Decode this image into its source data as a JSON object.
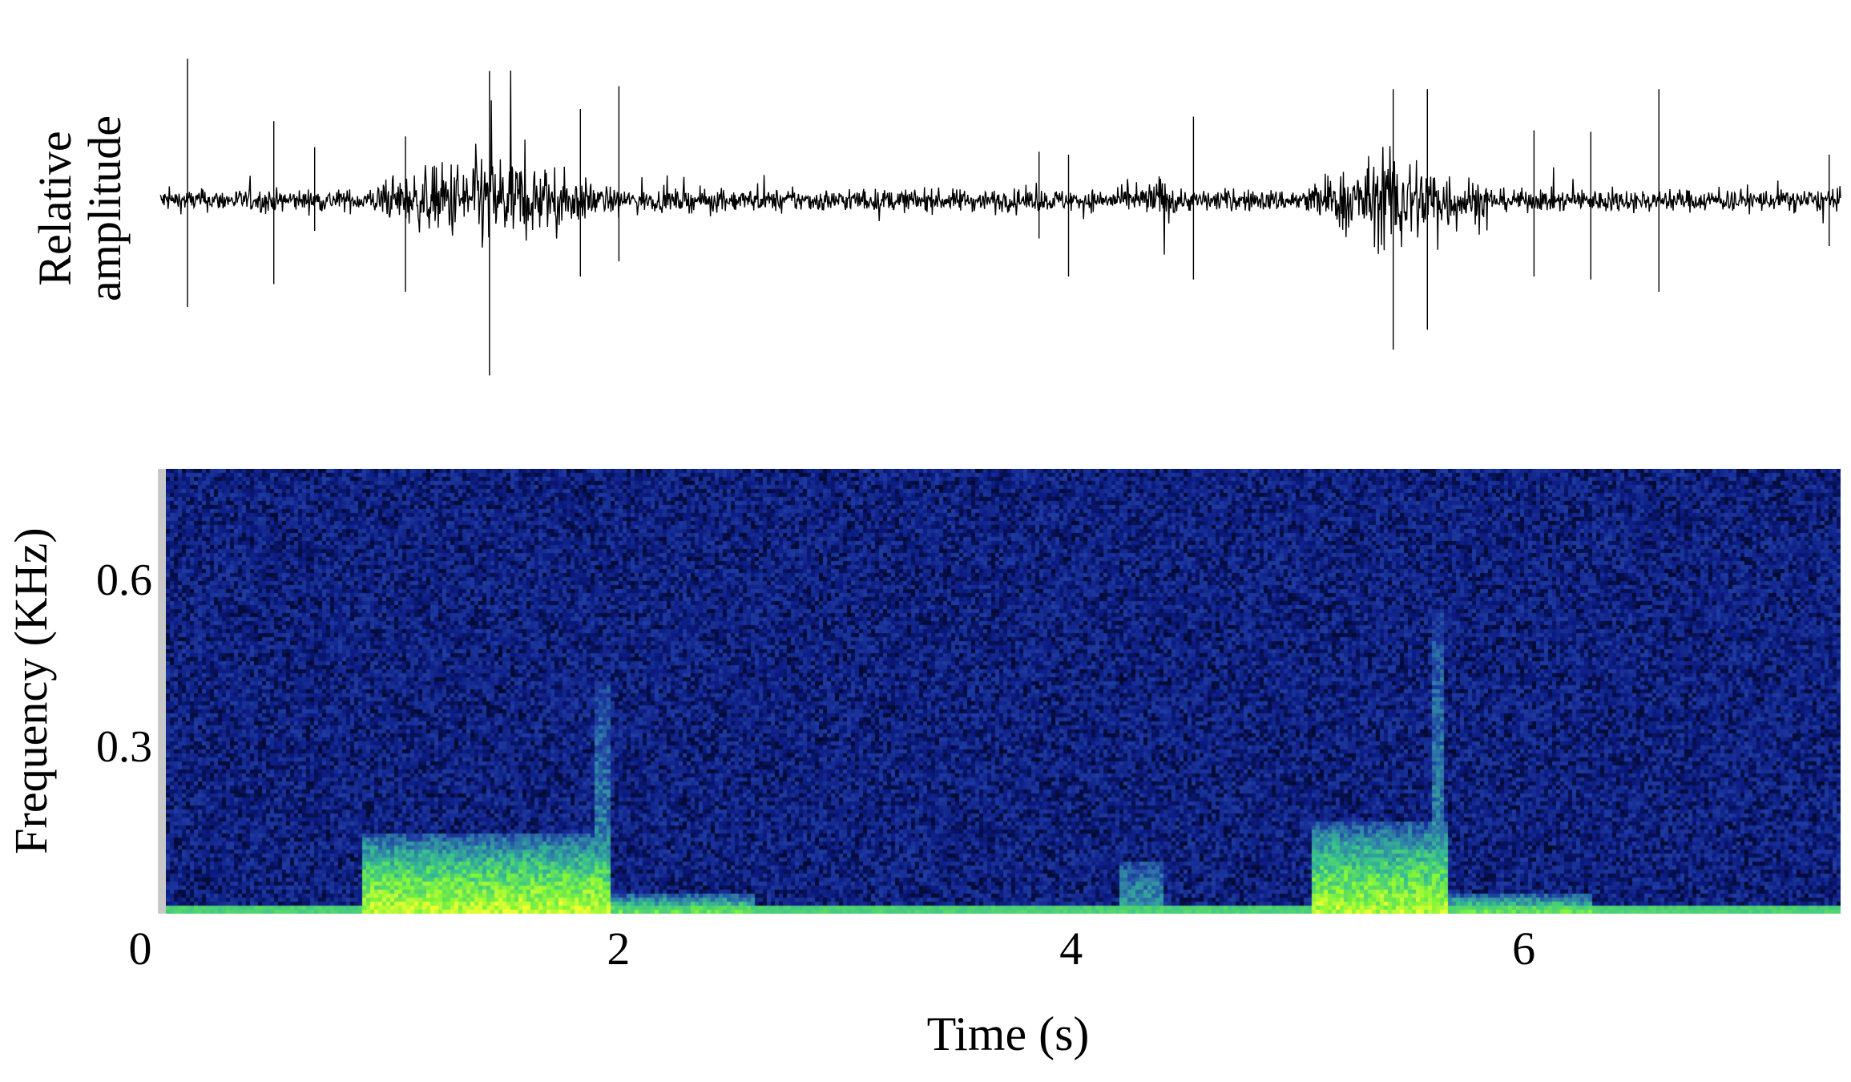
{
  "chart_data": [
    {
      "type": "line",
      "panel": "waveform",
      "ylabel_lines": [
        "Relative",
        "amplitude"
      ],
      "xlim": [
        0,
        7.4
      ],
      "ylim": [
        -1,
        1
      ],
      "line_color": "#000000",
      "baseline_noise": 0.12,
      "bursts": [
        {
          "start": 0.9,
          "end": 2.0,
          "gain": 0.45
        },
        {
          "start": 5.0,
          "end": 5.9,
          "gain": 0.45
        },
        {
          "start": 4.3,
          "end": 4.5,
          "gain": 0.15
        }
      ],
      "spikes": [
        {
          "t": 0.12,
          "up": 0.93,
          "down": -0.7
        },
        {
          "t": 0.5,
          "up": 0.52,
          "down": -0.55
        },
        {
          "t": 0.68,
          "up": 0.35,
          "down": -0.2
        },
        {
          "t": 1.08,
          "up": 0.42,
          "down": -0.6
        },
        {
          "t": 1.45,
          "up": 0.85,
          "down": -1.15
        },
        {
          "t": 1.85,
          "up": 0.6,
          "down": -0.5
        },
        {
          "t": 2.02,
          "up": 0.75,
          "down": -0.4
        },
        {
          "t": 3.87,
          "up": 0.32,
          "down": -0.25
        },
        {
          "t": 4.0,
          "up": 0.3,
          "down": -0.5
        },
        {
          "t": 4.55,
          "up": 0.55,
          "down": -0.52
        },
        {
          "t": 5.43,
          "up": 0.73,
          "down": -0.98
        },
        {
          "t": 5.58,
          "up": 0.73,
          "down": -0.85
        },
        {
          "t": 6.05,
          "up": 0.46,
          "down": -0.5
        },
        {
          "t": 6.3,
          "up": 0.45,
          "down": -0.52
        },
        {
          "t": 6.6,
          "up": 0.73,
          "down": -0.6
        },
        {
          "t": 7.35,
          "up": 0.3,
          "down": -0.3
        }
      ]
    },
    {
      "type": "heatmap",
      "panel": "spectrogram",
      "ylabel": "Frequency (KHz)",
      "xlabel": "Time (s)",
      "xlim": [
        0,
        7.4
      ],
      "ylim": [
        0,
        0.8
      ],
      "xticks": [
        {
          "value": 0,
          "label": "0"
        },
        {
          "value": 2,
          "label": "2"
        },
        {
          "value": 4,
          "label": "4"
        },
        {
          "value": 6,
          "label": "6"
        }
      ],
      "yticks": [
        {
          "value": 0.3,
          "label": "0.3"
        },
        {
          "value": 0.6,
          "label": "0.6"
        }
      ],
      "colormap": [
        "#000000",
        "#0b1a80",
        "#1e3aa0",
        "#2f7fa8",
        "#36c090",
        "#7ef53a",
        "#f0ff30"
      ],
      "background_level": 0.2,
      "noise_band": {
        "fmax": 0.02,
        "level": 0.72
      },
      "events": [
        {
          "start": 0.85,
          "end": 1.95,
          "fmax": 0.15,
          "level": 0.95
        },
        {
          "start": 1.88,
          "end": 1.95,
          "fmax": 0.42,
          "level": 0.55
        },
        {
          "start": 4.2,
          "end": 4.4,
          "fmax": 0.1,
          "level": 0.6
        },
        {
          "start": 5.05,
          "end": 5.65,
          "fmax": 0.17,
          "level": 0.92
        },
        {
          "start": 5.58,
          "end": 5.63,
          "fmax": 0.55,
          "level": 0.55
        },
        {
          "start": 1.95,
          "end": 2.6,
          "fmax": 0.04,
          "level": 0.8
        },
        {
          "start": 5.6,
          "end": 6.3,
          "fmax": 0.04,
          "level": 0.8
        }
      ]
    }
  ]
}
